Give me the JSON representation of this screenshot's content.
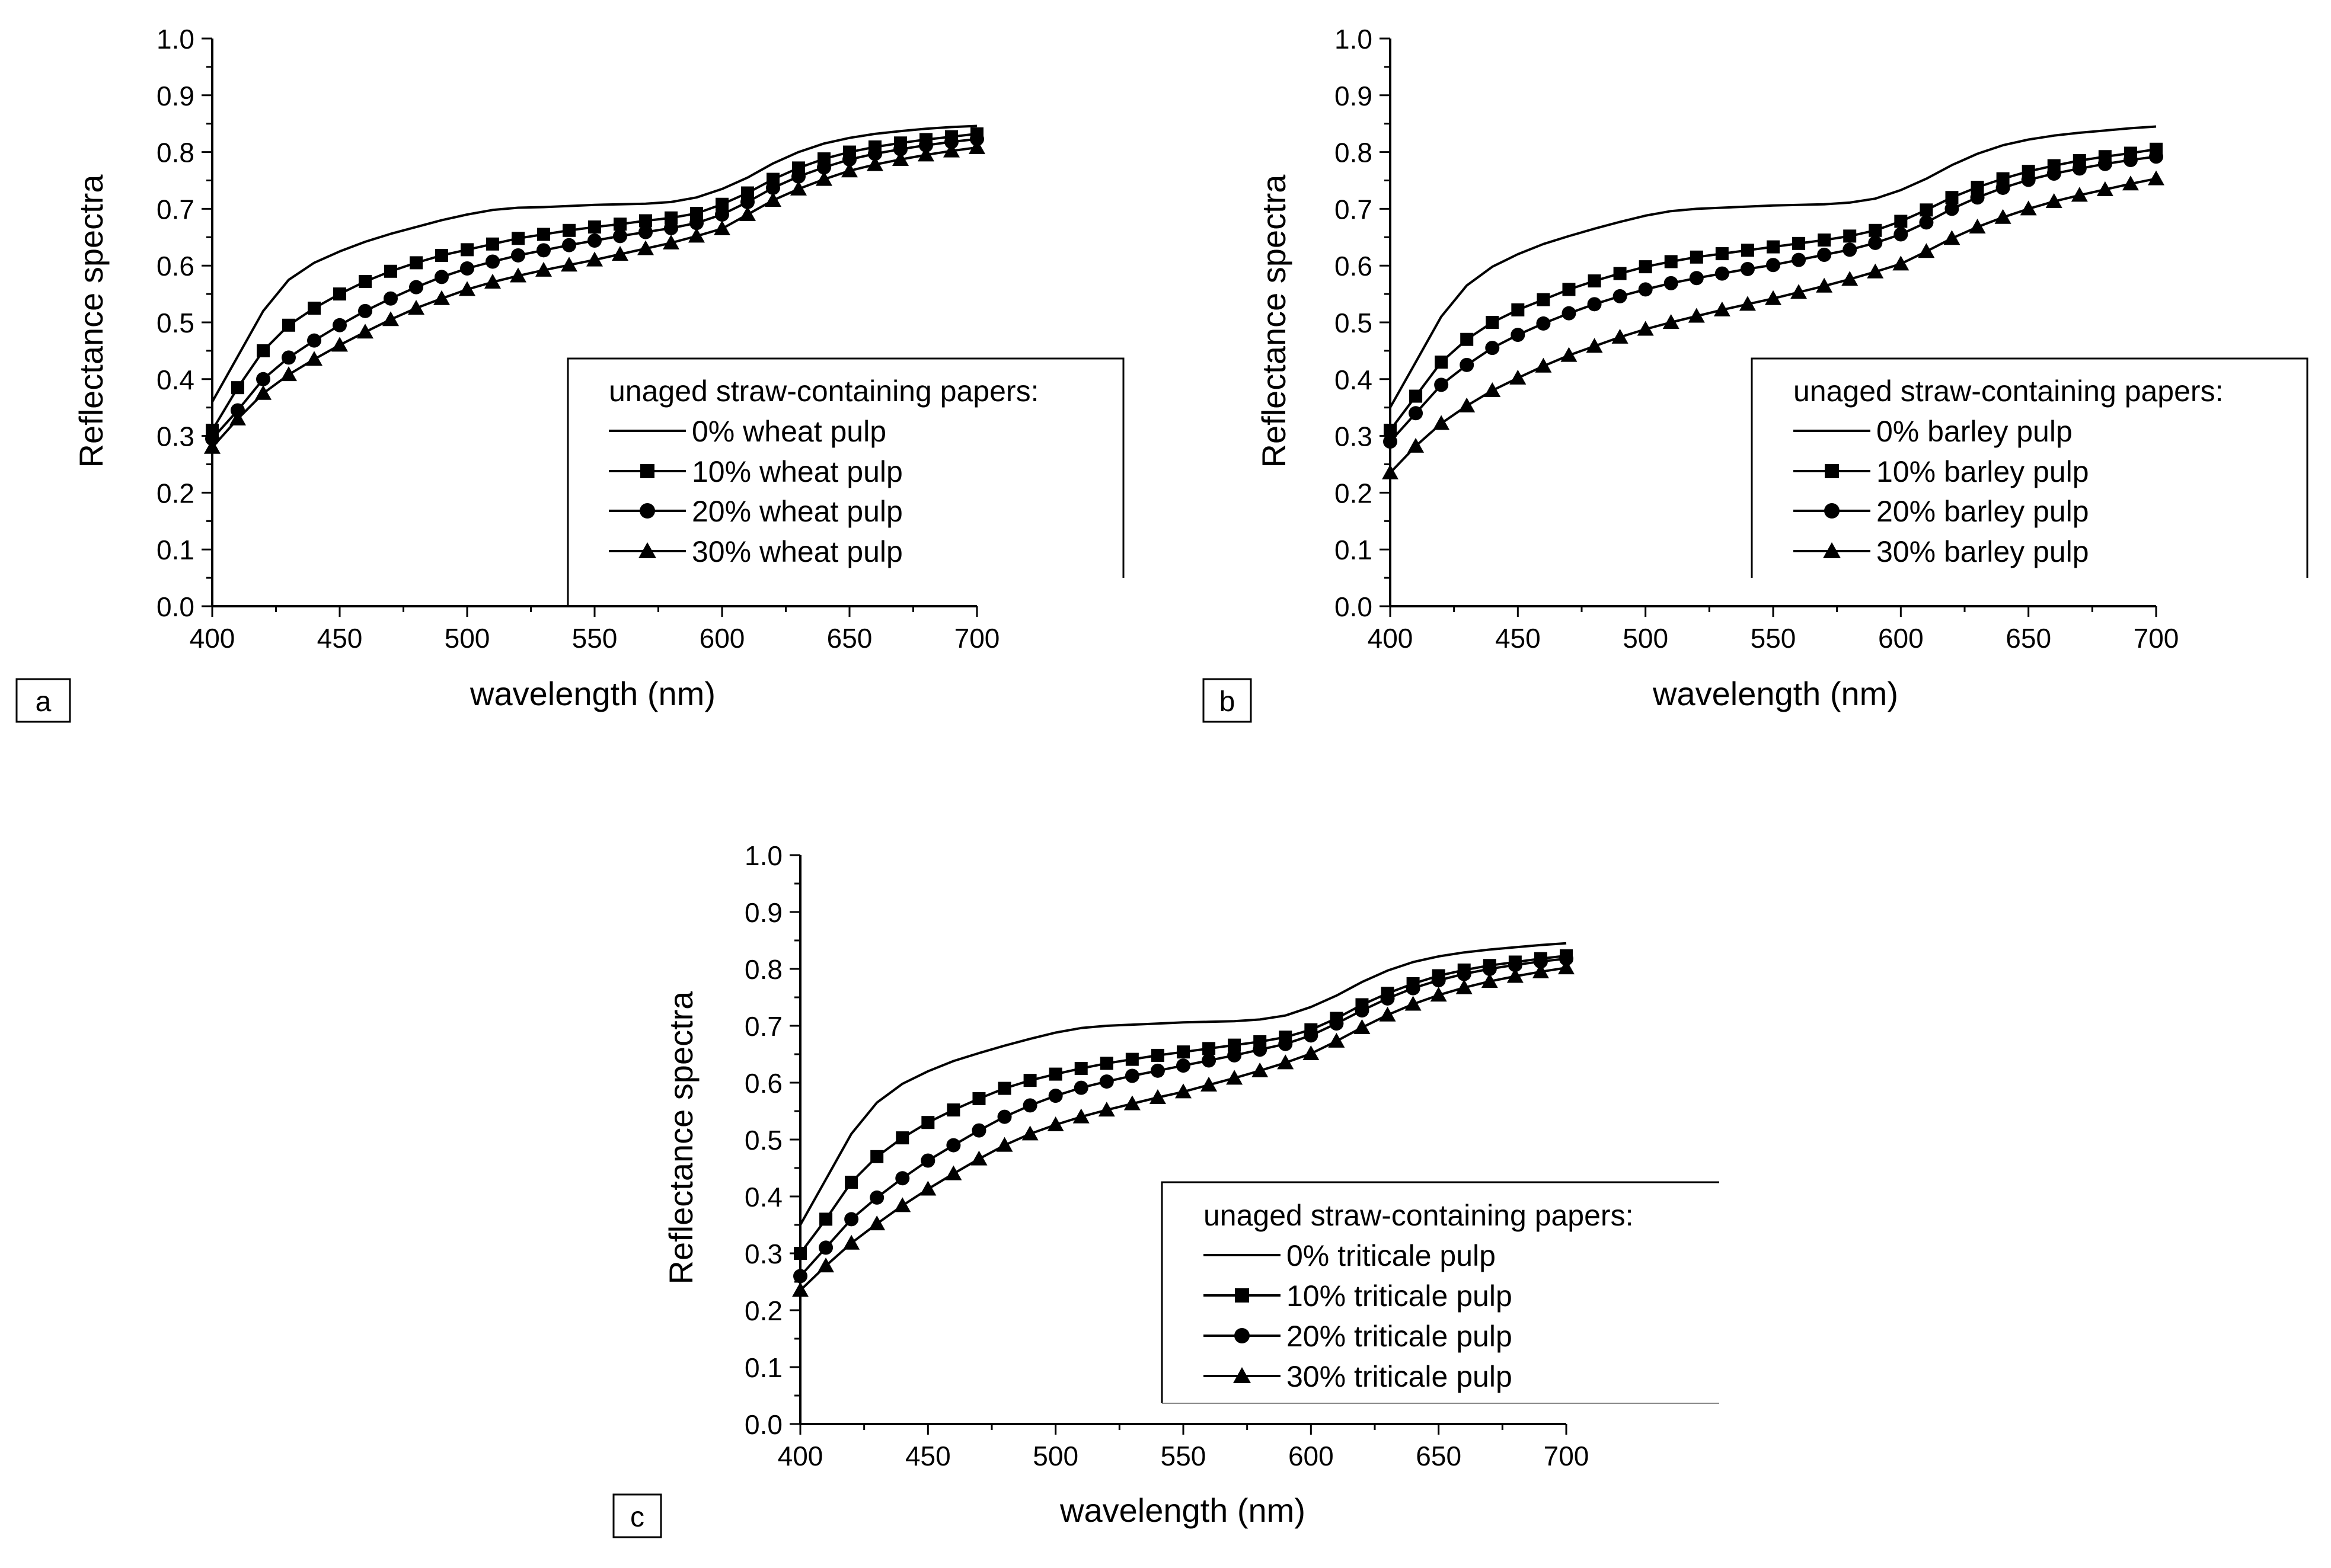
{
  "figure": {
    "panel_count": 3
  },
  "chart_data": [
    {
      "type": "line",
      "panel_label": "a",
      "title": "",
      "xlabel": "wavelength (nm)",
      "ylabel": "Reflectance spectra",
      "xlim": [
        400,
        700
      ],
      "ylim": [
        0.0,
        1.0
      ],
      "xticks": [
        400,
        450,
        500,
        550,
        600,
        650,
        700
      ],
      "xtick_labels": [
        "400",
        "450",
        "500",
        "550",
        "600",
        "650",
        "700"
      ],
      "yticks": [
        0.0,
        0.1,
        0.2,
        0.3,
        0.4,
        0.5,
        0.6,
        0.7,
        0.8,
        0.9,
        1.0
      ],
      "ytick_labels": [
        "0.0",
        "0.1",
        "0.2",
        "0.3",
        "0.4",
        "0.5",
        "0.6",
        "0.7",
        "0.8",
        "0.9",
        "1.0"
      ],
      "grid": false,
      "legend_position": "center-right",
      "legend_title": "unaged straw-containing papers:",
      "x": [
        400,
        410,
        420,
        430,
        440,
        450,
        460,
        470,
        480,
        490,
        500,
        510,
        520,
        530,
        540,
        550,
        560,
        570,
        580,
        590,
        600,
        610,
        620,
        630,
        640,
        650,
        660,
        670,
        680,
        690,
        700
      ],
      "series": [
        {
          "name": "0% wheat pulp",
          "marker": "none",
          "color": "#000000",
          "values": [
            0.36,
            0.44,
            0.52,
            0.575,
            0.605,
            0.625,
            0.642,
            0.656,
            0.668,
            0.68,
            0.69,
            0.698,
            0.702,
            0.703,
            0.705,
            0.707,
            0.708,
            0.709,
            0.712,
            0.72,
            0.735,
            0.755,
            0.78,
            0.8,
            0.815,
            0.825,
            0.832,
            0.837,
            0.841,
            0.844,
            0.846
          ]
        },
        {
          "name": "10% wheat pulp",
          "marker": "square",
          "color": "#000000",
          "values": [
            0.31,
            0.385,
            0.45,
            0.495,
            0.525,
            0.55,
            0.572,
            0.59,
            0.605,
            0.618,
            0.628,
            0.638,
            0.648,
            0.655,
            0.662,
            0.668,
            0.673,
            0.679,
            0.684,
            0.692,
            0.708,
            0.728,
            0.752,
            0.772,
            0.788,
            0.8,
            0.809,
            0.816,
            0.822,
            0.827,
            0.832
          ]
        },
        {
          "name": "20% wheat pulp",
          "marker": "circle",
          "color": "#000000",
          "values": [
            0.295,
            0.345,
            0.4,
            0.438,
            0.468,
            0.495,
            0.52,
            0.542,
            0.562,
            0.58,
            0.595,
            0.607,
            0.618,
            0.627,
            0.636,
            0.644,
            0.652,
            0.659,
            0.666,
            0.675,
            0.69,
            0.712,
            0.737,
            0.757,
            0.773,
            0.787,
            0.797,
            0.805,
            0.812,
            0.818,
            0.823
          ]
        },
        {
          "name": "30% wheat pulp",
          "marker": "triangle",
          "color": "#000000",
          "values": [
            0.28,
            0.33,
            0.375,
            0.408,
            0.435,
            0.46,
            0.483,
            0.505,
            0.525,
            0.542,
            0.558,
            0.571,
            0.582,
            0.592,
            0.601,
            0.61,
            0.62,
            0.63,
            0.64,
            0.652,
            0.665,
            0.69,
            0.715,
            0.735,
            0.752,
            0.767,
            0.778,
            0.787,
            0.795,
            0.802,
            0.808
          ]
        }
      ]
    },
    {
      "type": "line",
      "panel_label": "b",
      "title": "",
      "xlabel": "wavelength (nm)",
      "ylabel": "Reflectance spectra",
      "xlim": [
        400,
        700
      ],
      "ylim": [
        0.0,
        1.0
      ],
      "xticks": [
        400,
        450,
        500,
        550,
        600,
        650,
        700
      ],
      "xtick_labels": [
        "400",
        "450",
        "500",
        "550",
        "600",
        "650",
        "700"
      ],
      "yticks": [
        0.0,
        0.1,
        0.2,
        0.3,
        0.4,
        0.5,
        0.6,
        0.7,
        0.8,
        0.9,
        1.0
      ],
      "ytick_labels": [
        "0.0",
        "0.1",
        "0.2",
        "0.3",
        "0.4",
        "0.5",
        "0.6",
        "0.7",
        "0.8",
        "0.9",
        "1.0"
      ],
      "grid": false,
      "legend_position": "center-right",
      "legend_title": "unaged straw-containing papers:",
      "x": [
        400,
        410,
        420,
        430,
        440,
        450,
        460,
        470,
        480,
        490,
        500,
        510,
        520,
        530,
        540,
        550,
        560,
        570,
        580,
        590,
        600,
        610,
        620,
        630,
        640,
        650,
        660,
        670,
        680,
        690,
        700
      ],
      "series": [
        {
          "name": "0% barley pulp",
          "marker": "none",
          "color": "#000000",
          "values": [
            0.35,
            0.43,
            0.51,
            0.565,
            0.598,
            0.62,
            0.638,
            0.652,
            0.665,
            0.677,
            0.688,
            0.696,
            0.7,
            0.702,
            0.704,
            0.706,
            0.707,
            0.708,
            0.711,
            0.718,
            0.733,
            0.753,
            0.777,
            0.797,
            0.812,
            0.822,
            0.829,
            0.834,
            0.838,
            0.842,
            0.845
          ]
        },
        {
          "name": "10% barley pulp",
          "marker": "square",
          "color": "#000000",
          "values": [
            0.31,
            0.37,
            0.43,
            0.47,
            0.5,
            0.522,
            0.54,
            0.558,
            0.573,
            0.586,
            0.598,
            0.607,
            0.615,
            0.621,
            0.627,
            0.633,
            0.639,
            0.645,
            0.652,
            0.662,
            0.678,
            0.698,
            0.72,
            0.738,
            0.753,
            0.766,
            0.776,
            0.785,
            0.792,
            0.798,
            0.805
          ]
        },
        {
          "name": "20% barley pulp",
          "marker": "circle",
          "color": "#000000",
          "values": [
            0.29,
            0.34,
            0.39,
            0.425,
            0.455,
            0.478,
            0.498,
            0.516,
            0.532,
            0.546,
            0.558,
            0.569,
            0.578,
            0.586,
            0.594,
            0.601,
            0.61,
            0.619,
            0.628,
            0.64,
            0.655,
            0.676,
            0.7,
            0.72,
            0.737,
            0.751,
            0.762,
            0.771,
            0.779,
            0.786,
            0.792
          ]
        },
        {
          "name": "30% barley pulp",
          "marker": "triangle",
          "color": "#000000",
          "values": [
            0.235,
            0.282,
            0.322,
            0.353,
            0.38,
            0.402,
            0.423,
            0.442,
            0.458,
            0.474,
            0.488,
            0.5,
            0.511,
            0.522,
            0.532,
            0.542,
            0.553,
            0.564,
            0.576,
            0.589,
            0.603,
            0.625,
            0.648,
            0.668,
            0.685,
            0.7,
            0.713,
            0.724,
            0.734,
            0.744,
            0.753
          ]
        }
      ]
    },
    {
      "type": "line",
      "panel_label": "c",
      "title": "",
      "xlabel": "wavelength (nm)",
      "ylabel": "Reflectance spectra",
      "xlim": [
        400,
        700
      ],
      "ylim": [
        0.0,
        1.0
      ],
      "xticks": [
        400,
        450,
        500,
        550,
        600,
        650,
        700
      ],
      "xtick_labels": [
        "400",
        "450",
        "500",
        "550",
        "600",
        "650",
        "700"
      ],
      "yticks": [
        0.0,
        0.1,
        0.2,
        0.3,
        0.4,
        0.5,
        0.6,
        0.7,
        0.8,
        0.9,
        1.0
      ],
      "ytick_labels": [
        "0.0",
        "0.1",
        "0.2",
        "0.3",
        "0.4",
        "0.5",
        "0.6",
        "0.7",
        "0.8",
        "0.9",
        "1.0"
      ],
      "grid": false,
      "legend_position": "center-right",
      "legend_title": "unaged straw-containing papers:",
      "x": [
        400,
        410,
        420,
        430,
        440,
        450,
        460,
        470,
        480,
        490,
        500,
        510,
        520,
        530,
        540,
        550,
        560,
        570,
        580,
        590,
        600,
        610,
        620,
        630,
        640,
        650,
        660,
        670,
        680,
        690,
        700
      ],
      "series": [
        {
          "name": "0% triticale pulp",
          "marker": "none",
          "color": "#000000",
          "values": [
            0.35,
            0.43,
            0.51,
            0.565,
            0.598,
            0.62,
            0.638,
            0.652,
            0.665,
            0.677,
            0.688,
            0.696,
            0.7,
            0.702,
            0.704,
            0.706,
            0.707,
            0.708,
            0.711,
            0.718,
            0.733,
            0.753,
            0.777,
            0.797,
            0.812,
            0.822,
            0.829,
            0.834,
            0.838,
            0.842,
            0.845
          ]
        },
        {
          "name": "10% triticale pulp",
          "marker": "square",
          "color": "#000000",
          "values": [
            0.3,
            0.36,
            0.425,
            0.47,
            0.503,
            0.53,
            0.552,
            0.572,
            0.59,
            0.604,
            0.615,
            0.625,
            0.634,
            0.641,
            0.648,
            0.654,
            0.66,
            0.666,
            0.672,
            0.68,
            0.693,
            0.713,
            0.737,
            0.757,
            0.774,
            0.788,
            0.798,
            0.806,
            0.812,
            0.818,
            0.823
          ]
        },
        {
          "name": "20% triticale pulp",
          "marker": "circle",
          "color": "#000000",
          "values": [
            0.26,
            0.31,
            0.36,
            0.398,
            0.432,
            0.463,
            0.49,
            0.516,
            0.54,
            0.56,
            0.577,
            0.591,
            0.602,
            0.612,
            0.621,
            0.63,
            0.639,
            0.648,
            0.658,
            0.668,
            0.683,
            0.704,
            0.727,
            0.748,
            0.766,
            0.78,
            0.791,
            0.8,
            0.807,
            0.813,
            0.818
          ]
        },
        {
          "name": "30% triticale pulp",
          "marker": "triangle",
          "color": "#000000",
          "values": [
            0.235,
            0.278,
            0.318,
            0.352,
            0.384,
            0.413,
            0.44,
            0.466,
            0.49,
            0.51,
            0.526,
            0.54,
            0.552,
            0.563,
            0.574,
            0.584,
            0.596,
            0.608,
            0.621,
            0.635,
            0.651,
            0.673,
            0.697,
            0.719,
            0.738,
            0.754,
            0.767,
            0.778,
            0.787,
            0.795,
            0.802
          ]
        }
      ]
    }
  ]
}
